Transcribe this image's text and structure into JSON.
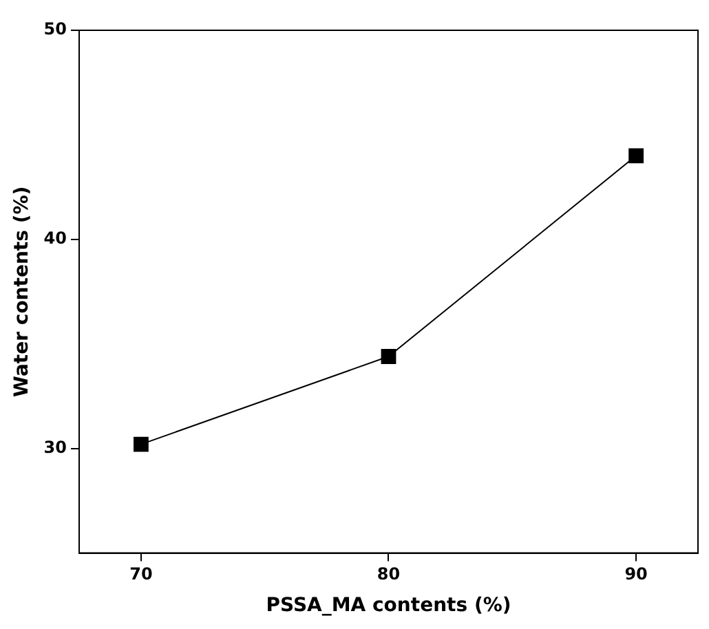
{
  "chart_data": {
    "type": "line",
    "xlabel": "PSSA_MA contents (%)",
    "ylabel": "Water contents (%)",
    "x": [
      70,
      80,
      90
    ],
    "series": [
      {
        "color": "#000000",
        "values": [
          30.2,
          34.4,
          44.0
        ]
      }
    ],
    "xlim": [
      67.5,
      92.5
    ],
    "xticks": [
      70,
      80,
      90
    ],
    "ylim": [
      25,
      50
    ],
    "yticks": [
      30,
      40,
      50
    ],
    "marker": "square",
    "line_style": "solid",
    "grid": false,
    "legend": false
  }
}
